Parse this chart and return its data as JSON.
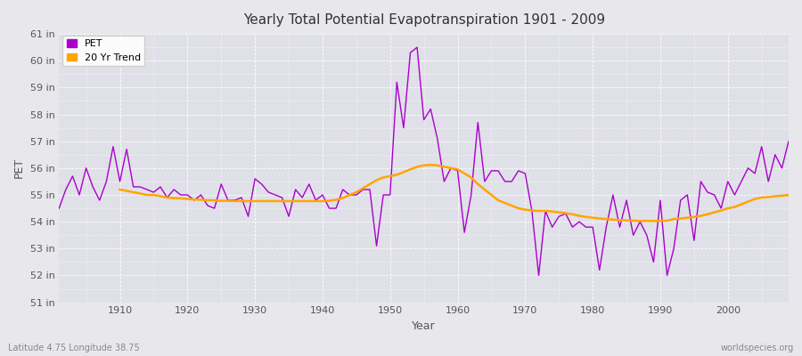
{
  "title": "Yearly Total Potential Evapotranspiration 1901 - 2009",
  "xlabel": "Year",
  "ylabel": "PET",
  "bottom_left_label": "Latitude 4.75 Longitude 38.75",
  "bottom_right_label": "worldspecies.org",
  "pet_color": "#AA00CC",
  "trend_color": "#FFA500",
  "bg_color": "#E8E8EC",
  "plot_bg_color": "#E0E0E8",
  "ylim_min": 51,
  "ylim_max": 61,
  "yticks": [
    51,
    52,
    53,
    54,
    55,
    56,
    57,
    58,
    59,
    60,
    61
  ],
  "ytick_labels": [
    "51 in",
    "52 in",
    "53 in",
    "54 in",
    "55 in",
    "56 in",
    "57 in",
    "58 in",
    "59 in",
    "60 in",
    "61 in"
  ],
  "years": [
    1901,
    1902,
    1903,
    1904,
    1905,
    1906,
    1907,
    1908,
    1909,
    1910,
    1911,
    1912,
    1913,
    1914,
    1915,
    1916,
    1917,
    1918,
    1919,
    1920,
    1921,
    1922,
    1923,
    1924,
    1925,
    1926,
    1927,
    1928,
    1929,
    1930,
    1931,
    1932,
    1933,
    1934,
    1935,
    1936,
    1937,
    1938,
    1939,
    1940,
    1941,
    1942,
    1943,
    1944,
    1945,
    1946,
    1947,
    1948,
    1949,
    1950,
    1951,
    1952,
    1953,
    1954,
    1955,
    1956,
    1957,
    1958,
    1959,
    1960,
    1961,
    1962,
    1963,
    1964,
    1965,
    1966,
    1967,
    1968,
    1969,
    1970,
    1971,
    1972,
    1973,
    1974,
    1975,
    1976,
    1977,
    1978,
    1979,
    1980,
    1981,
    1982,
    1983,
    1984,
    1985,
    1986,
    1987,
    1988,
    1989,
    1990,
    1991,
    1992,
    1993,
    1994,
    1995,
    1996,
    1997,
    1998,
    1999,
    2000,
    2001,
    2002,
    2003,
    2004,
    2005,
    2006,
    2007,
    2008,
    2009
  ],
  "pet_values": [
    54.5,
    55.2,
    55.7,
    55.0,
    56.0,
    55.3,
    54.8,
    55.5,
    56.8,
    55.5,
    56.7,
    55.3,
    55.3,
    55.2,
    55.1,
    55.3,
    54.9,
    55.2,
    55.0,
    55.0,
    54.8,
    55.0,
    54.6,
    54.5,
    55.4,
    54.8,
    54.8,
    54.9,
    54.2,
    55.6,
    55.4,
    55.1,
    55.0,
    54.9,
    54.2,
    55.2,
    54.9,
    55.4,
    54.8,
    55.0,
    54.5,
    54.5,
    55.2,
    55.0,
    55.0,
    55.2,
    55.2,
    53.1,
    55.0,
    55.0,
    59.2,
    57.5,
    60.3,
    60.5,
    57.8,
    58.2,
    57.1,
    55.5,
    56.0,
    55.9,
    53.6,
    55.0,
    57.7,
    55.5,
    55.9,
    55.9,
    55.5,
    55.5,
    55.9,
    55.8,
    54.4,
    52.0,
    54.4,
    53.8,
    54.2,
    54.3,
    53.8,
    54.0,
    53.8,
    53.8,
    52.2,
    53.8,
    55.0,
    53.8,
    54.8,
    53.5,
    54.0,
    53.5,
    52.5,
    54.8,
    52.0,
    53.0,
    54.8,
    55.0,
    53.3,
    55.5,
    55.1,
    55.0,
    54.5,
    55.5,
    55.0,
    55.5,
    56.0,
    55.8,
    56.8,
    55.5,
    56.5,
    56.0,
    57.0
  ],
  "trend_years": [
    1910,
    1911,
    1912,
    1913,
    1914,
    1915,
    1916,
    1917,
    1918,
    1919,
    1920,
    1921,
    1922,
    1923,
    1924,
    1925,
    1926,
    1927,
    1928,
    1929,
    1930,
    1931,
    1932,
    1933,
    1934,
    1935,
    1936,
    1937,
    1938,
    1939,
    1940,
    1941,
    1942,
    1943,
    1944,
    1945,
    1946,
    1947,
    1948,
    1949,
    1950,
    1951,
    1952,
    1953,
    1954,
    1955,
    1956,
    1957,
    1958,
    1959,
    1960,
    1961,
    1962,
    1963,
    1964,
    1965,
    1966,
    1967,
    1968,
    1969,
    1970,
    1971,
    1972,
    1973,
    1974,
    1975,
    1976,
    1977,
    1978,
    1979,
    1980,
    1981,
    1982,
    1983,
    1984,
    1985,
    1986,
    1987,
    1988,
    1989,
    1990,
    1991,
    1992,
    1993,
    1994,
    1995,
    1996,
    1997,
    1998,
    1999,
    2000,
    2001,
    2002,
    2003,
    2004,
    2005,
    2006,
    2007,
    2008,
    2009
  ],
  "trend_values": [
    55.2,
    55.15,
    55.1,
    55.05,
    55.0,
    55.0,
    54.95,
    54.9,
    54.88,
    54.87,
    54.85,
    54.83,
    54.82,
    54.8,
    54.8,
    54.78,
    54.78,
    54.77,
    54.77,
    54.77,
    54.77,
    54.77,
    54.77,
    54.77,
    54.77,
    54.77,
    54.77,
    54.77,
    54.77,
    54.77,
    54.77,
    54.78,
    54.82,
    54.88,
    55.0,
    55.1,
    55.25,
    55.4,
    55.55,
    55.65,
    55.7,
    55.75,
    55.85,
    55.95,
    56.05,
    56.1,
    56.12,
    56.1,
    56.05,
    56.0,
    55.95,
    55.8,
    55.65,
    55.4,
    55.2,
    55.0,
    54.8,
    54.7,
    54.6,
    54.5,
    54.45,
    54.42,
    54.4,
    54.4,
    54.38,
    54.35,
    54.32,
    54.28,
    54.22,
    54.18,
    54.15,
    54.12,
    54.1,
    54.08,
    54.06,
    54.05,
    54.04,
    54.03,
    54.03,
    54.03,
    54.03,
    54.04,
    54.1,
    54.12,
    54.15,
    54.18,
    54.22,
    54.28,
    54.35,
    54.42,
    54.5,
    54.55,
    54.65,
    54.75,
    54.85,
    54.9,
    54.92,
    54.95,
    54.97,
    55.0
  ]
}
